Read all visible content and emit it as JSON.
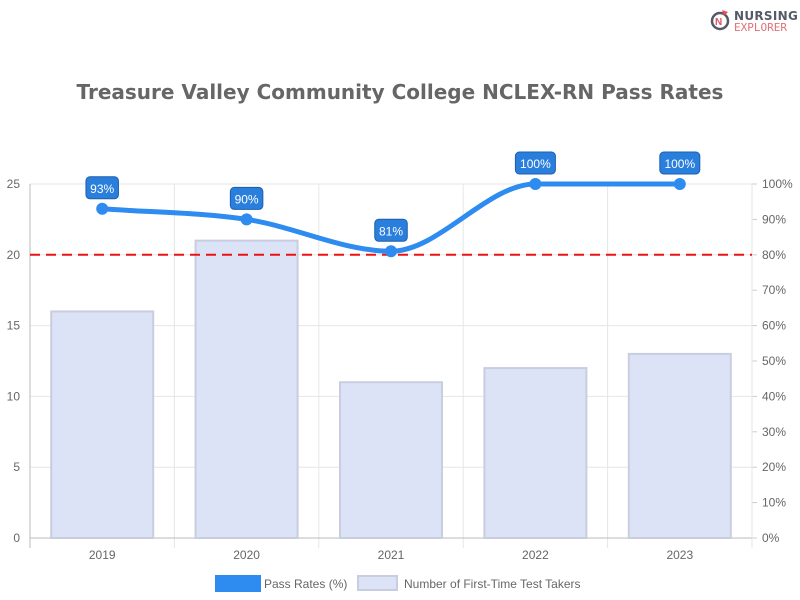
{
  "logo": {
    "line1": "NURSING",
    "line2": "EXPLORER"
  },
  "chart_data": {
    "type": "bar+line",
    "title": "Treasure Valley Community College NCLEX-RN Pass Rates",
    "categories": [
      "2019",
      "2020",
      "2021",
      "2022",
      "2023"
    ],
    "series": [
      {
        "name": "Pass Rates (%)",
        "type": "line",
        "axis": "right",
        "values": [
          93,
          90,
          81,
          100,
          100
        ],
        "labels": [
          "93%",
          "90%",
          "81%",
          "100%",
          "100%"
        ],
        "color": "#2e8bef"
      },
      {
        "name": "Number of First-Time Test Takers",
        "type": "bar",
        "axis": "left",
        "values": [
          16,
          21,
          11,
          12,
          13
        ],
        "color": "#dce3f6"
      }
    ],
    "y_left": {
      "range": [
        0,
        25
      ],
      "ticks": [
        "0",
        "5",
        "10",
        "15",
        "20",
        "25"
      ]
    },
    "y_right": {
      "range": [
        0,
        100
      ],
      "ticks": [
        "0%",
        "10%",
        "20%",
        "30%",
        "40%",
        "50%",
        "60%",
        "70%",
        "80%",
        "90%",
        "100%"
      ]
    },
    "reference_line": {
      "value_percent": 80,
      "color": "#ee1111",
      "style": "dashed"
    },
    "grid": true,
    "legend": "bottom"
  }
}
